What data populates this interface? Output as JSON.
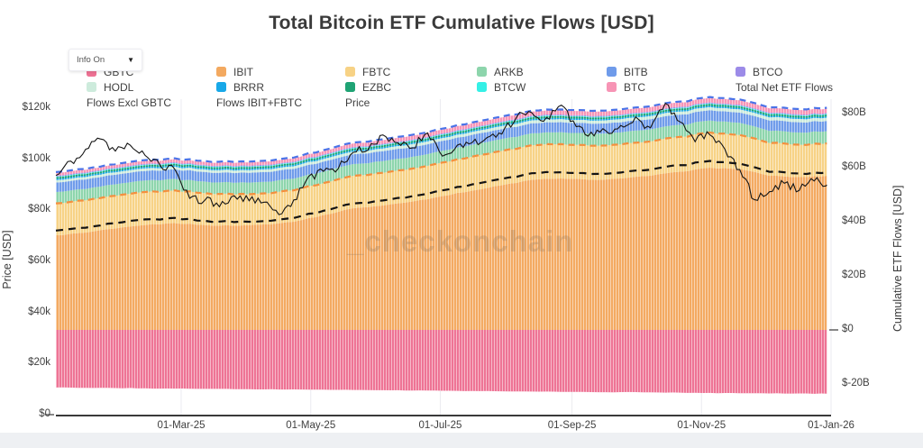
{
  "header": {
    "title": "Total Bitcoin ETF Cumulative Flows [USD]"
  },
  "controls": {
    "info_toggle_label": "Info On",
    "dropdown_icon": "▼"
  },
  "watermark": "_checkonchain",
  "colors": {
    "GBTC": "#ee7294",
    "IBIT": "#f3a960",
    "FBTC": "#f7d285",
    "ARKB": "#8dd5ac",
    "BITB": "#6f9bea",
    "BTCO": "#9c8be8",
    "HODL": "#cdebdc",
    "BRRR": "#18a8e8",
    "EZBC": "#1fa374",
    "BTCW": "#35f0e6",
    "BTC": "#f794b5",
    "total_net_flows": "#141414",
    "flows_excl_gbtc": "#4a73e8",
    "flows_ibit_fbtc": "#f58f3e",
    "price": "#151515",
    "axis_line": "#3a3a3a",
    "gridline": "#ebebf0"
  },
  "legend": {
    "rows": [
      [
        {
          "id": "gbtc",
          "label": "GBTC",
          "type": "swatch",
          "color": "#ee7294"
        },
        {
          "id": "ibit",
          "label": "IBIT",
          "type": "swatch",
          "color": "#f3a960"
        },
        {
          "id": "fbtc",
          "label": "FBTC",
          "type": "swatch",
          "color": "#f7d285"
        },
        {
          "id": "arkb",
          "label": "ARKB",
          "type": "swatch",
          "color": "#8dd5ac"
        },
        {
          "id": "bitb",
          "label": "BITB",
          "type": "swatch",
          "color": "#6f9bea"
        },
        {
          "id": "btco",
          "label": "BTCO",
          "type": "swatch",
          "color": "#9c8be8"
        }
      ],
      [
        {
          "id": "hodl",
          "label": "HODL",
          "type": "swatch",
          "color": "#cdebdc"
        },
        {
          "id": "brrr",
          "label": "BRRR",
          "type": "swatch",
          "color": "#18a8e8"
        },
        {
          "id": "ezbc",
          "label": "EZBC",
          "type": "swatch",
          "color": "#1fa374"
        },
        {
          "id": "btcw",
          "label": "BTCW",
          "type": "swatch",
          "color": "#35f0e6"
        },
        {
          "id": "btc",
          "label": "BTC",
          "type": "swatch",
          "color": "#f794b5"
        },
        {
          "id": "total-net-etf-flows",
          "label": "Total Net ETF Flows",
          "type": "dash",
          "color": "#141414"
        }
      ],
      [
        {
          "id": "flows-excl-gbtc",
          "label": "Flows Excl GBTC",
          "type": "dash",
          "color": "#4a73e8"
        },
        {
          "id": "flows-ibit-fbtc",
          "label": "Flows IBIT+FBTC",
          "type": "dash",
          "color": "#f58f3e"
        },
        {
          "id": "price",
          "label": "Price",
          "type": "line",
          "color": "#151515"
        }
      ]
    ]
  },
  "chart_data": {
    "type": "area",
    "title": "Total Bitcoin ETF Cumulative Flows [USD]",
    "left_axis": {
      "title": "Price [USD]",
      "ticks": [
        "$0",
        "$20k",
        "$40k",
        "$60k",
        "$80k",
        "$100k",
        "$120k"
      ],
      "range": [
        0,
        120000
      ]
    },
    "right_axis": {
      "title": "Cumulative ETF Flows [USD]",
      "ticks": [
        "$-20B",
        "$0",
        "$20B",
        "$40B",
        "$60B",
        "$80B"
      ],
      "range_billions": [
        -20,
        80
      ]
    },
    "x_axis": {
      "ticks": [
        "01-Mar-25",
        "01-May-25",
        "01-Jul-25",
        "01-Sep-25",
        "01-Nov-25",
        "01-Jan-26"
      ],
      "tick_days_from_start": [
        59,
        120,
        181,
        243,
        304,
        365
      ],
      "range_days": 365,
      "start": "01-Jan-25"
    },
    "grid": "vertical-only",
    "legend_position": "top",
    "flows_sample_interval_days": 14,
    "stack_order_bottom_to_top": [
      "IBIT",
      "FBTC",
      "ARKB",
      "BITB",
      "HODL",
      "BRRR",
      "EZBC",
      "BTCW",
      "BTCO",
      "BTC"
    ],
    "series_billions": {
      "GBTC": [
        -21.3,
        -21.4,
        -21.5,
        -21.6,
        -21.7,
        -21.8,
        -21.9,
        -22.0,
        -22.0,
        -22.1,
        -22.2,
        -22.3,
        -22.4,
        -22.5,
        -22.6,
        -22.7,
        -22.8,
        -22.9,
        -23.0,
        -23.0,
        -23.1,
        -23.2,
        -23.3,
        -23.4,
        -23.5,
        -23.5,
        -23.6
      ],
      "IBIT": [
        35.0,
        36.0,
        37.5,
        38.8,
        39.5,
        38.8,
        38.5,
        39.0,
        40.0,
        42.5,
        45.0,
        46.0,
        47.5,
        49.5,
        51.5,
        53.5,
        55.5,
        56.0,
        55.5,
        56.0,
        57.0,
        58.5,
        60.0,
        59.5,
        57.0,
        56.5,
        57.0
      ],
      "FBTC": [
        11.8,
        11.9,
        12.1,
        12.2,
        12.1,
        11.8,
        11.6,
        11.5,
        11.6,
        11.8,
        12.0,
        12.1,
        12.2,
        12.4,
        12.6,
        12.7,
        12.8,
        12.7,
        12.6,
        12.6,
        12.7,
        12.9,
        13.0,
        12.6,
        12.1,
        12.0,
        12.0
      ],
      "ARKB": [
        4.2,
        4.21,
        4.23,
        4.24,
        4.25,
        4.26,
        4.27,
        4.28,
        4.3,
        4.31,
        4.32,
        4.34,
        4.35,
        4.36,
        4.38,
        4.39,
        4.4,
        4.42,
        4.43,
        4.44,
        4.45,
        4.46,
        4.48,
        4.49,
        4.5,
        4.5,
        4.5
      ],
      "BITB": [
        3.5,
        3.51,
        3.52,
        3.54,
        3.55,
        3.56,
        3.58,
        3.59,
        3.6,
        3.61,
        3.63,
        3.64,
        3.65,
        3.66,
        3.68,
        3.69,
        3.7,
        3.72,
        3.73,
        3.74,
        3.75,
        3.76,
        3.78,
        3.79,
        3.8,
        3.8,
        3.8
      ],
      "HODL": [
        0.9,
        0.91,
        0.92,
        0.94,
        0.95,
        0.96,
        0.97,
        0.99,
        1.0,
        1.01,
        1.02,
        1.03,
        1.05,
        1.06,
        1.07,
        1.08,
        1.1,
        1.11,
        1.12,
        1.13,
        1.15,
        1.16,
        1.17,
        1.18,
        1.19,
        1.2,
        1.2
      ],
      "BRRR": [
        0.5,
        0.5,
        0.5,
        0.5,
        0.5,
        0.5,
        0.5,
        0.5,
        0.5,
        0.5,
        0.5,
        0.5,
        0.5,
        0.5,
        0.5,
        0.5,
        0.5,
        0.5,
        0.5,
        0.5,
        0.5,
        0.5,
        0.5,
        0.5,
        0.5,
        0.5,
        0.5
      ],
      "EZBC": [
        0.6,
        0.6,
        0.6,
        0.61,
        0.61,
        0.61,
        0.62,
        0.62,
        0.62,
        0.62,
        0.63,
        0.63,
        0.63,
        0.63,
        0.63,
        0.64,
        0.64,
        0.64,
        0.64,
        0.64,
        0.65,
        0.65,
        0.65,
        0.65,
        0.65,
        0.65,
        0.65
      ],
      "BTCW": [
        0.25,
        0.25,
        0.25,
        0.25,
        0.25,
        0.25,
        0.25,
        0.25,
        0.25,
        0.25,
        0.25,
        0.25,
        0.25,
        0.25,
        0.25,
        0.25,
        0.25,
        0.25,
        0.25,
        0.25,
        0.25,
        0.25,
        0.25,
        0.25,
        0.25,
        0.25,
        0.25
      ],
      "BTCO": [
        0.3,
        0.3,
        0.3,
        0.31,
        0.31,
        0.31,
        0.32,
        0.32,
        0.32,
        0.32,
        0.33,
        0.33,
        0.33,
        0.33,
        0.33,
        0.34,
        0.34,
        0.34,
        0.34,
        0.34,
        0.35,
        0.35,
        0.35,
        0.35,
        0.35,
        0.35,
        0.35
      ],
      "BTC": [
        1.0,
        1.02,
        1.05,
        1.08,
        1.1,
        1.12,
        1.15,
        1.18,
        1.2,
        1.25,
        1.3,
        1.35,
        1.4,
        1.42,
        1.45,
        1.48,
        1.5,
        1.52,
        1.55,
        1.56,
        1.58,
        1.6,
        1.62,
        1.6,
        1.58,
        1.59,
        1.6
      ]
    },
    "derived_lines": {
      "Total Net ETF Flows": "sum of all series incl. GBTC",
      "Flows Excl GBTC": "sum of all series excl. GBTC",
      "Flows IBIT+FBTC": "IBIT + FBTC"
    },
    "price_weekly_thousands_usd": [
      94,
      99,
      104,
      108,
      103,
      105,
      102,
      98,
      96,
      85,
      84,
      82,
      86,
      84,
      83,
      78,
      84,
      93,
      95,
      97,
      103,
      104,
      110,
      106,
      105,
      110,
      101,
      105,
      107,
      108,
      110,
      117,
      118,
      116,
      121,
      113,
      110,
      111,
      113,
      116,
      112,
      122,
      115,
      107,
      110,
      104,
      96,
      84,
      87,
      91,
      88,
      92,
      90
    ]
  }
}
